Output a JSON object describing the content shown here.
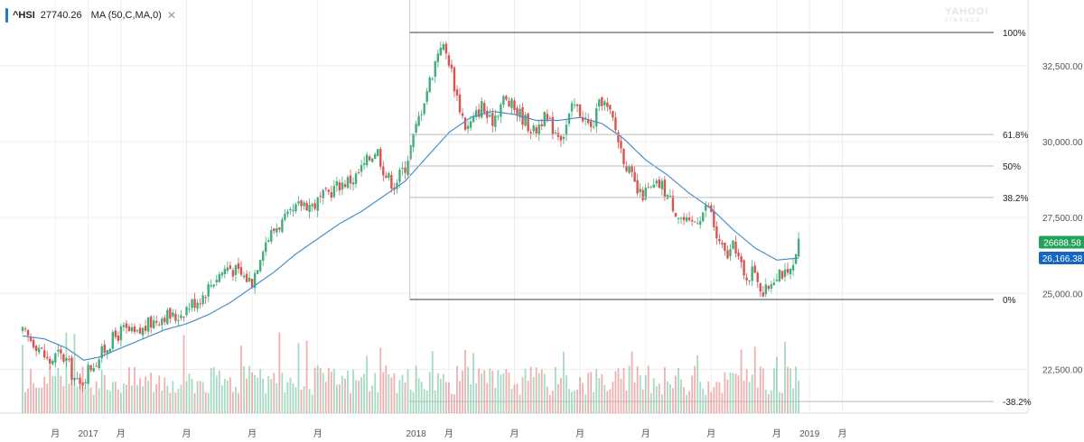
{
  "legend": {
    "symbol": "^HSI",
    "value": "27740.26",
    "indicator": "MA (50,C,MA,0)",
    "close_glyph": "✕"
  },
  "watermark": {
    "line1": "YAHOO!",
    "line2": "FINANCE"
  },
  "badges": {
    "last": {
      "text": "26688.58",
      "value": 26688.58,
      "color": "#1fa25a"
    },
    "ma": {
      "text": "26,166.38",
      "value": 26166.38,
      "color": "#1466c0"
    }
  },
  "colors": {
    "up": "#3fae7a",
    "down": "#d9534f",
    "ma": "#4a90c8",
    "fib": "#888888",
    "grid": "#eeeeee"
  },
  "chart_data": {
    "type": "candlestick",
    "title": "",
    "xlabel": "",
    "ylabel": "",
    "ylim": [
      20000,
      34500
    ],
    "y_ticks": [
      {
        "value": 22500,
        "label": "22,500.00"
      },
      {
        "value": 25000,
        "label": "25,000.00"
      },
      {
        "value": 27500,
        "label": "27,500.00"
      },
      {
        "value": 30000,
        "label": "30,000.00"
      },
      {
        "value": 32500,
        "label": "32,500.00"
      }
    ],
    "x_ticks": [
      {
        "m": 1.5,
        "label": "月"
      },
      {
        "m": 3,
        "label": "2017"
      },
      {
        "m": 4.5,
        "label": "月"
      },
      {
        "m": 7.5,
        "label": "月"
      },
      {
        "m": 10.5,
        "label": "月"
      },
      {
        "m": 13.5,
        "label": "月"
      },
      {
        "m": 18,
        "label": "2018"
      },
      {
        "m": 19.5,
        "label": "月"
      },
      {
        "m": 22.5,
        "label": "月"
      },
      {
        "m": 25.5,
        "label": "月"
      },
      {
        "m": 28.5,
        "label": "月"
      },
      {
        "m": 31.5,
        "label": "月"
      },
      {
        "m": 34.5,
        "label": "月"
      },
      {
        "m": 36,
        "label": "2019"
      },
      {
        "m": 37.5,
        "label": "月"
      }
    ],
    "price_keyframes": [
      [
        0,
        23700
      ],
      [
        0.7,
        23300
      ],
      [
        1.2,
        22700
      ],
      [
        1.6,
        23000
      ],
      [
        2.0,
        22800
      ],
      [
        2.3,
        22300
      ],
      [
        2.6,
        21900
      ],
      [
        3.0,
        22500
      ],
      [
        3.5,
        22900
      ],
      [
        4.0,
        23400
      ],
      [
        4.6,
        23800
      ],
      [
        5.2,
        23600
      ],
      [
        5.8,
        24000
      ],
      [
        6.5,
        24300
      ],
      [
        7.0,
        24200
      ],
      [
        7.6,
        24600
      ],
      [
        8.2,
        24900
      ],
      [
        8.8,
        25500
      ],
      [
        9.4,
        25900
      ],
      [
        10.0,
        25600
      ],
      [
        10.5,
        25400
      ],
      [
        11.0,
        26600
      ],
      [
        11.6,
        27200
      ],
      [
        12.2,
        27500
      ],
      [
        12.8,
        28000
      ],
      [
        13.3,
        27900
      ],
      [
        13.8,
        28200
      ],
      [
        14.5,
        28600
      ],
      [
        15.2,
        28800
      ],
      [
        15.8,
        29400
      ],
      [
        16.2,
        29800
      ],
      [
        16.6,
        28900
      ],
      [
        17.0,
        28600
      ],
      [
        17.5,
        29200
      ],
      [
        17.9,
        30200
      ],
      [
        18.4,
        31500
      ],
      [
        18.8,
        32400
      ],
      [
        19.1,
        33300
      ],
      [
        19.5,
        32700
      ],
      [
        19.9,
        31400
      ],
      [
        20.3,
        30400
      ],
      [
        20.6,
        30700
      ],
      [
        21.0,
        31200
      ],
      [
        21.4,
        30600
      ],
      [
        22.0,
        31400
      ],
      [
        22.5,
        31100
      ],
      [
        23.0,
        30700
      ],
      [
        23.4,
        30300
      ],
      [
        23.8,
        30800
      ],
      [
        24.2,
        30500
      ],
      [
        24.7,
        30200
      ],
      [
        25.2,
        31200
      ],
      [
        25.6,
        30900
      ],
      [
        26.0,
        30400
      ],
      [
        26.5,
        31400
      ],
      [
        27.0,
        30700
      ],
      [
        27.4,
        29700
      ],
      [
        27.8,
        28900
      ],
      [
        28.2,
        28200
      ],
      [
        28.7,
        28400
      ],
      [
        29.2,
        28600
      ],
      [
        29.6,
        28100
      ],
      [
        30.0,
        27600
      ],
      [
        30.5,
        27200
      ],
      [
        31.0,
        27600
      ],
      [
        31.4,
        27900
      ],
      [
        31.8,
        26700
      ],
      [
        32.2,
        26200
      ],
      [
        32.6,
        26600
      ],
      [
        33.0,
        25500
      ],
      [
        33.5,
        25800
      ],
      [
        33.9,
        24900
      ],
      [
        34.3,
        25500
      ],
      [
        34.6,
        25800
      ],
      [
        35.0,
        25500
      ],
      [
        35.4,
        26100
      ],
      [
        35.5,
        26688
      ]
    ],
    "ma_series": {
      "name": "MA (50,C,MA,0)",
      "keyframes": [
        [
          0,
          23600
        ],
        [
          1.0,
          23500
        ],
        [
          2.0,
          23200
        ],
        [
          2.8,
          22800
        ],
        [
          3.5,
          22900
        ],
        [
          4.5,
          23200
        ],
        [
          5.5,
          23500
        ],
        [
          6.5,
          23800
        ],
        [
          7.5,
          24000
        ],
        [
          8.5,
          24300
        ],
        [
          9.5,
          24700
        ],
        [
          10.5,
          25200
        ],
        [
          11.5,
          25700
        ],
        [
          12.5,
          26300
        ],
        [
          13.5,
          26800
        ],
        [
          14.5,
          27300
        ],
        [
          15.5,
          27700
        ],
        [
          16.5,
          28200
        ],
        [
          17.5,
          28700
        ],
        [
          18.5,
          29500
        ],
        [
          19.5,
          30300
        ],
        [
          20.5,
          30800
        ],
        [
          21.5,
          31000
        ],
        [
          22.5,
          30900
        ],
        [
          23.5,
          30700
        ],
        [
          24.5,
          30700
        ],
        [
          25.5,
          30800
        ],
        [
          26.5,
          30600
        ],
        [
          27.5,
          30100
        ],
        [
          28.5,
          29400
        ],
        [
          29.5,
          28900
        ],
        [
          30.5,
          28300
        ],
        [
          31.5,
          27800
        ],
        [
          32.5,
          27100
        ],
        [
          33.5,
          26500
        ],
        [
          34.5,
          26100
        ],
        [
          35.5,
          26166
        ]
      ]
    },
    "volume_relative_range": [
      0.2,
      0.75
    ],
    "fibonacci": {
      "high": 33600,
      "low": 24800,
      "start_m": 18.0,
      "levels": [
        {
          "ratio": 1.0,
          "label": "100%"
        },
        {
          "ratio": 0.618,
          "label": "61.8%"
        },
        {
          "ratio": 0.5,
          "label": "50%"
        },
        {
          "ratio": 0.382,
          "label": "38.2%"
        },
        {
          "ratio": 0.0,
          "label": "0%"
        },
        {
          "ratio": -0.382,
          "label": "-38.2%"
        }
      ]
    }
  }
}
